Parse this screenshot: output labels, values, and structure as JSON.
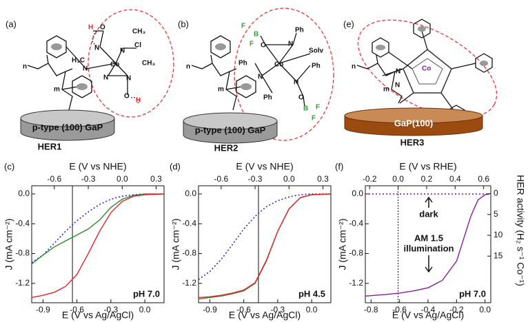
{
  "diagrams": [
    {
      "panel": "(a)",
      "name": "HER1",
      "substrate": "p-type (100) GaP",
      "atoms": [
        "H",
        "O",
        "CH₃",
        "N",
        "N",
        "Cl",
        "H₃C",
        "Co",
        "CH₃",
        "N",
        "N",
        "N",
        "O",
        "H",
        "n",
        "m"
      ]
    },
    {
      "panel": "(b)",
      "name": "HER2",
      "substrate": "p-type (100) GaP",
      "atoms": [
        "F",
        "B",
        "F",
        "O",
        "N",
        "Ph",
        "Solv",
        "Ph",
        "Co",
        "Ph",
        "N",
        "N",
        "Ph",
        "O",
        "B",
        "F",
        "F",
        "n",
        "m"
      ]
    },
    {
      "panel": "(e)",
      "name": "HER3",
      "substrate": "GaP(100)",
      "atoms": [
        "N",
        "Co",
        "N",
        "n",
        "m"
      ]
    }
  ],
  "chart_data": [
    {
      "type": "line",
      "panel": "(c)",
      "xlabel": "E (V vs Ag/AgCl)",
      "x2label": "E (V vs NHE)",
      "ylabel": "J (mA cm⁻²)",
      "xlim": [
        -1.0,
        0.17
      ],
      "xticks": [
        -0.9,
        -0.6,
        -0.3,
        {
          "value": 0,
          "label": "0.0"
        }
      ],
      "x2lim": [
        -0.8,
        0.37
      ],
      "x2ticks": [
        -0.6,
        -0.3,
        {
          "value": 0,
          "label": "0.0"
        },
        0.3
      ],
      "ylim": [
        -1.46,
        0.11
      ],
      "yticks": [
        {
          "value": 0,
          "label": "0.0"
        },
        -0.4,
        -0.8,
        -1.2
      ],
      "vline": -0.64,
      "annotations": [
        "pH 7.0"
      ],
      "x": [
        -1.0,
        -0.9,
        -0.8,
        -0.7,
        -0.6,
        -0.5,
        -0.4,
        -0.3,
        -0.2,
        -0.1,
        0.0,
        0.17
      ],
      "series": [
        {
          "color": "#2323e0",
          "style": "dotted",
          "values": [
            -0.92,
            -0.82,
            -0.66,
            -0.5,
            -0.36,
            -0.24,
            -0.14,
            -0.07,
            -0.03,
            -0.01,
            0,
            0
          ]
        },
        {
          "color": "#2a8a2a",
          "style": "solid",
          "values": [
            -0.94,
            -0.82,
            -0.71,
            -0.63,
            -0.55,
            -0.47,
            -0.35,
            -0.18,
            -0.07,
            -0.02,
            0,
            0
          ]
        },
        {
          "color": "#e8202a",
          "style": "solid",
          "values": [
            -1.39,
            -1.36,
            -1.32,
            -1.24,
            -1.08,
            -0.8,
            -0.5,
            -0.25,
            -0.1,
            -0.03,
            -0.01,
            0
          ]
        }
      ]
    },
    {
      "type": "line",
      "panel": "(d)",
      "xlabel": "E (V vs Ag/AgCl)",
      "x2label": "E (V vs NHE)",
      "ylabel": "J (mA cm⁻²)",
      "xlim": [
        -1.0,
        0.17
      ],
      "xticks": [
        -0.9,
        -0.6,
        -0.3,
        {
          "value": 0,
          "label": "0.0"
        }
      ],
      "x2lim": [
        -0.8,
        0.37
      ],
      "x2ticks": [
        -0.6,
        -0.3,
        {
          "value": 0,
          "label": "0.0"
        },
        0.3
      ],
      "ylim": [
        -1.46,
        0.11
      ],
      "yticks": [
        {
          "value": 0,
          "label": "0.0"
        },
        -0.4,
        -0.8,
        -1.2
      ],
      "vline": -0.47,
      "annotations": [
        "pH 4.5"
      ],
      "x": [
        -1.0,
        -0.9,
        -0.8,
        -0.7,
        -0.6,
        -0.5,
        -0.4,
        -0.3,
        -0.2,
        -0.1,
        0.0,
        0.17
      ],
      "series": [
        {
          "color": "#2323e0",
          "style": "dotted",
          "values": [
            -1.15,
            -1.04,
            -0.88,
            -0.68,
            -0.47,
            -0.3,
            -0.17,
            -0.09,
            -0.04,
            -0.01,
            0,
            0
          ]
        },
        {
          "color": "#2a8a2a",
          "style": "solid",
          "values": [
            -1.41,
            -1.39,
            -1.37,
            -1.34,
            -1.3,
            -1.2,
            -0.9,
            -0.5,
            -0.2,
            -0.05,
            -0.01,
            0
          ]
        },
        {
          "color": "#e8202a",
          "style": "solid",
          "values": [
            -1.39,
            -1.38,
            -1.36,
            -1.33,
            -1.29,
            -1.19,
            -0.89,
            -0.5,
            -0.2,
            -0.05,
            -0.01,
            0
          ]
        }
      ]
    },
    {
      "type": "line",
      "panel": "(f)",
      "xlabel": "E (V vs Ag/AgCl)",
      "x2label": "E (V vs RHE)",
      "ylabel": "J (mA cm⁻²)",
      "y2label": "HER activity (H₂ s⁻¹ Co⁻¹)",
      "xlim": [
        -0.84,
        0.04
      ],
      "xticks": [
        -0.8,
        -0.6,
        -0.4,
        -0.2,
        {
          "value": 0,
          "label": "0.0"
        }
      ],
      "x2lim": [
        -0.23,
        0.65
      ],
      "x2ticks": [
        -0.2,
        {
          "value": 0,
          "label": "0.0"
        },
        0.2,
        0.4,
        0.6
      ],
      "ylim": [
        -1.46,
        0.11
      ],
      "yticks": [
        {
          "value": 0,
          "label": "0.0"
        },
        -0.4,
        -0.8,
        -1.2
      ],
      "y2lim": [
        26.2,
        -1.9
      ],
      "y2ticks": [
        0,
        5,
        10,
        15
      ],
      "vline": -0.61,
      "annotations": [
        "pH 7.0",
        "dark",
        "AM 1.5",
        "illumination"
      ],
      "x": [
        -0.84,
        -0.7,
        -0.6,
        -0.5,
        -0.4,
        -0.3,
        -0.2,
        -0.15,
        -0.1,
        -0.05,
        0.0,
        0.03
      ],
      "series": [
        {
          "color": "#8b1a9b",
          "style": "solid",
          "values": [
            -1.37,
            -1.35,
            -1.33,
            -1.3,
            -1.26,
            -1.16,
            -0.9,
            -0.6,
            -0.3,
            -0.08,
            -0.01,
            0
          ]
        },
        {
          "color": "#8b1a9b",
          "style": "dotted",
          "values": [
            0,
            0,
            0,
            0,
            0,
            0,
            0,
            0,
            0,
            0,
            0,
            0
          ]
        }
      ]
    }
  ]
}
